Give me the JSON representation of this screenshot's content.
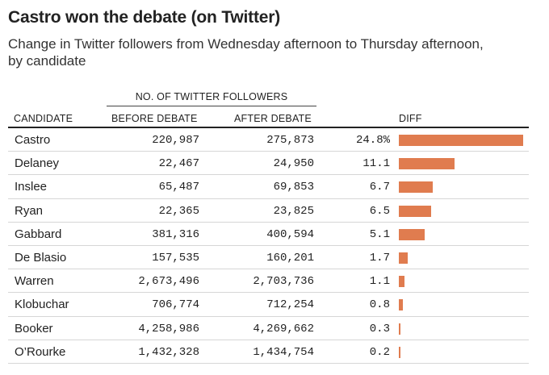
{
  "title": "Castro won the debate (on Twitter)",
  "subtitle": "Change in Twitter followers from Wednesday afternoon to Thursday afternoon, by candidate",
  "table": {
    "group_header": "NO. OF TWITTER FOLLOWERS",
    "headers": {
      "candidate": "CANDIDATE",
      "before": "BEFORE DEBATE",
      "after": "AFTER DEBATE",
      "diff": "DIFF"
    }
  },
  "colors": {
    "bar": "#e07c4f",
    "rule": "#222222",
    "row_divider": "#d6d6d6"
  },
  "chart_data": {
    "type": "bar",
    "categories": [
      "Castro",
      "Delaney",
      "Inslee",
      "Ryan",
      "Gabbard",
      "De Blasio",
      "Warren",
      "Klobuchar",
      "Booker",
      "O’Rourke"
    ],
    "values": [
      24.8,
      11.1,
      6.7,
      6.5,
      5.1,
      1.7,
      1.1,
      0.8,
      0.3,
      0.2
    ],
    "value_labels": [
      "24.8%",
      "11.1",
      "6.7",
      "6.5",
      "5.1",
      "1.7",
      "1.1",
      "0.8",
      "0.3",
      "0.2"
    ],
    "before_labels": [
      "220,987",
      "22,467",
      "65,487",
      "22,365",
      "381,316",
      "157,535",
      "2,673,496",
      "706,774",
      "4,258,986",
      "1,432,328"
    ],
    "after_labels": [
      "275,873",
      "24,950",
      "69,853",
      "23,825",
      "400,594",
      "160,201",
      "2,703,736",
      "712,254",
      "4,269,662",
      "1,434,754"
    ],
    "title": "Castro won the debate (on Twitter)",
    "xlabel": "",
    "ylabel": "DIFF",
    "xlim": [
      0,
      24.8
    ]
  }
}
